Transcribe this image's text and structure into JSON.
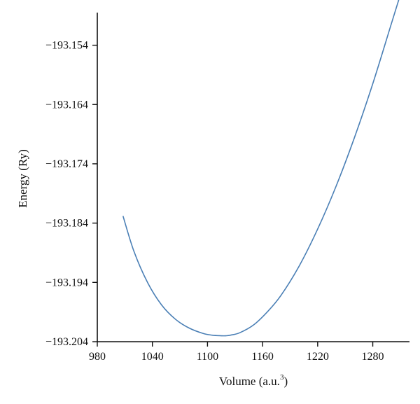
{
  "chart_data": {
    "type": "line",
    "title": "",
    "xlabel": "Volume (a.u.",
    "xlabel_superscript": "3",
    "xlabel_suffix": ")",
    "ylabel": "Energy (Ry)",
    "xlim": [
      980,
      1320
    ],
    "ylim": [
      -193.204,
      -193.1485
    ],
    "x_ticks": [
      980,
      1040,
      1100,
      1160,
      1220,
      1280
    ],
    "x_tick_labels": [
      "980",
      "1040",
      "1100",
      "1160",
      "1220",
      "1280"
    ],
    "y_ticks": [
      -193.154,
      -193.164,
      -193.174,
      -193.184,
      -193.194,
      -193.204
    ],
    "y_tick_labels": [
      "−193.154",
      "−193.164",
      "−193.174",
      "−193.184",
      "−193.194",
      "−193.204"
    ],
    "grid": false,
    "legend": false,
    "series": [
      {
        "color": "#4a7fb5",
        "x": [
          1008,
          1020,
          1035,
          1050,
          1065,
          1080,
          1095,
          1105,
          1115,
          1120,
          1125,
          1135,
          1150,
          1165,
          1180,
          1200,
          1220,
          1240,
          1260,
          1280,
          1300,
          1310
        ],
        "y": [
          -193.1828,
          -193.1888,
          -193.1941,
          -193.1978,
          -193.2002,
          -193.2017,
          -193.2026,
          -193.2029,
          -193.203,
          -193.203,
          -193.2029,
          -193.2025,
          -193.2012,
          -193.199,
          -193.1962,
          -193.1912,
          -193.185,
          -193.1778,
          -193.1696,
          -193.1605,
          -193.1505,
          -193.1455
        ]
      }
    ]
  }
}
